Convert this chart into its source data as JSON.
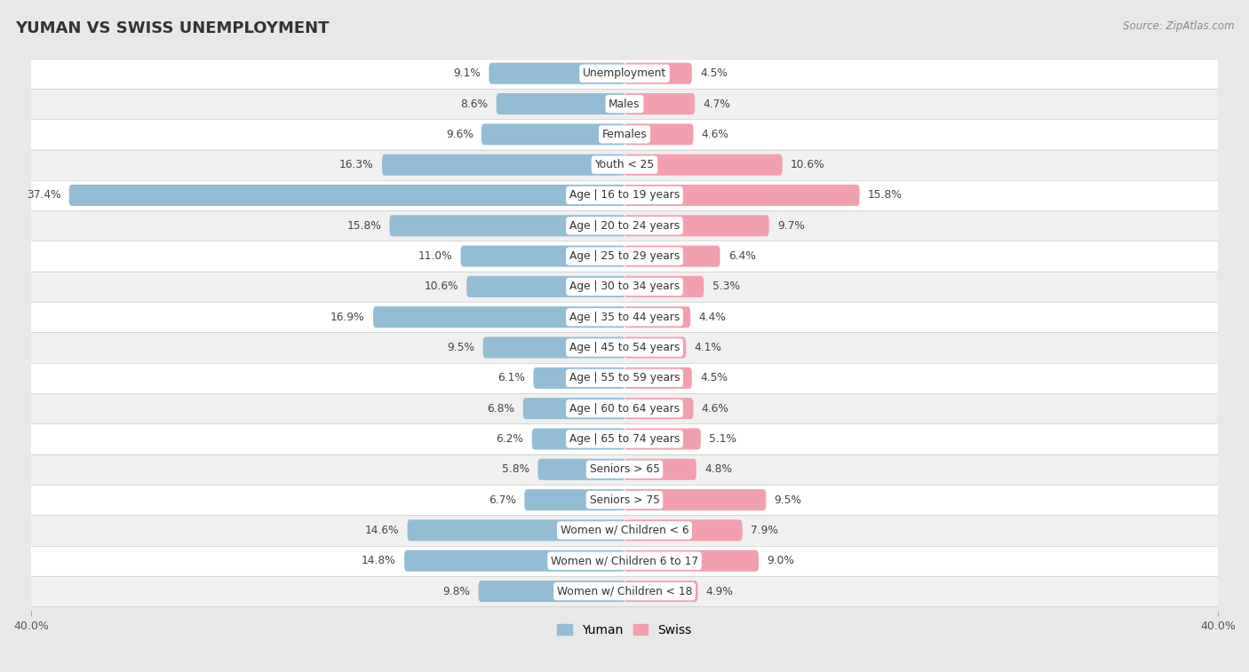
{
  "title": "YUMAN VS SWISS UNEMPLOYMENT",
  "source": "Source: ZipAtlas.com",
  "categories": [
    "Unemployment",
    "Males",
    "Females",
    "Youth < 25",
    "Age | 16 to 19 years",
    "Age | 20 to 24 years",
    "Age | 25 to 29 years",
    "Age | 30 to 34 years",
    "Age | 35 to 44 years",
    "Age | 45 to 54 years",
    "Age | 55 to 59 years",
    "Age | 60 to 64 years",
    "Age | 65 to 74 years",
    "Seniors > 65",
    "Seniors > 75",
    "Women w/ Children < 6",
    "Women w/ Children 6 to 17",
    "Women w/ Children < 18"
  ],
  "yuman_values": [
    9.1,
    8.6,
    9.6,
    16.3,
    37.4,
    15.8,
    11.0,
    10.6,
    16.9,
    9.5,
    6.1,
    6.8,
    6.2,
    5.8,
    6.7,
    14.6,
    14.8,
    9.8
  ],
  "swiss_values": [
    4.5,
    4.7,
    4.6,
    10.6,
    15.8,
    9.7,
    6.4,
    5.3,
    4.4,
    4.1,
    4.5,
    4.6,
    5.1,
    4.8,
    9.5,
    7.9,
    9.0,
    4.9
  ],
  "yuman_color": "#93bdd4",
  "swiss_color": "#f2a0b0",
  "row_color_odd": "#f5f5f5",
  "row_color_even": "#e8e8e8",
  "background_color": "#e8e8e8",
  "axis_max": 40.0,
  "bar_height": 0.62,
  "legend_yuman": "Yuman",
  "legend_swiss": "Swiss",
  "title_fontsize": 13,
  "label_fontsize": 8.8,
  "category_fontsize": 8.8
}
